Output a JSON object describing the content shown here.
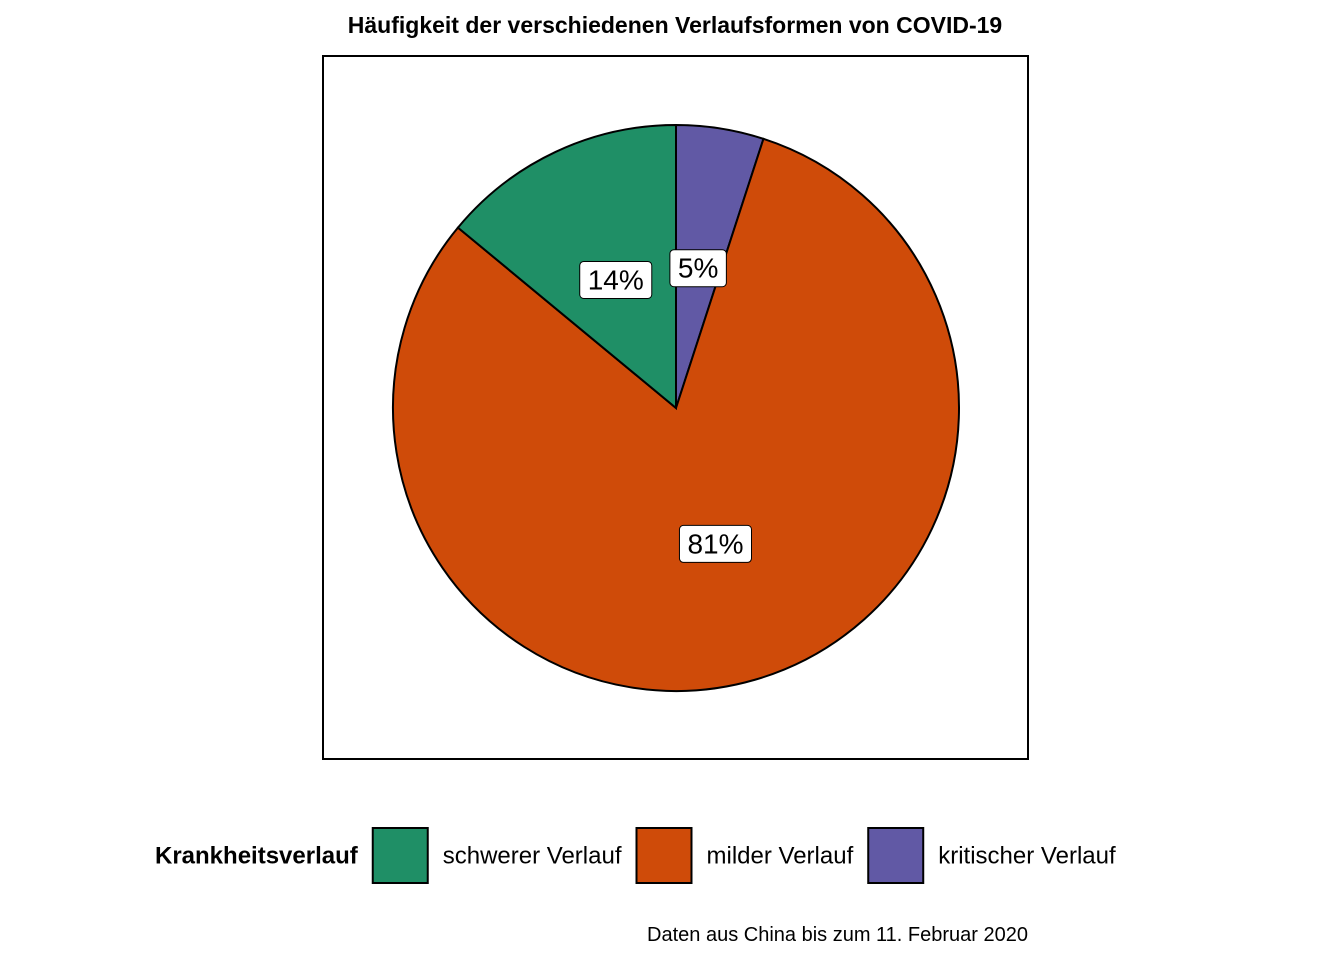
{
  "chart_data": {
    "type": "pie",
    "title": "Häufigkeit der verschiedenen Verlaufsformen von COVID-19",
    "caption": "Daten aus China bis zum 11. Februar 2020",
    "legend": {
      "title": "Krankheitsverlauf",
      "placement": "bottom"
    },
    "start_angle_deg": 0,
    "direction": "clockwise",
    "slices": [
      {
        "category": "kritischer Verlauf",
        "value": 5,
        "label": "5%",
        "color": "#6159a5"
      },
      {
        "category": "milder Verlauf",
        "value": 81,
        "label": "81%",
        "color": "#cf4b09"
      },
      {
        "category": "schwerer Verlauf",
        "value": 14,
        "label": "14%",
        "color": "#1f8f66"
      }
    ],
    "legend_order": [
      "schwerer Verlauf",
      "milder Verlauf",
      "kritischer Verlauf"
    ]
  }
}
